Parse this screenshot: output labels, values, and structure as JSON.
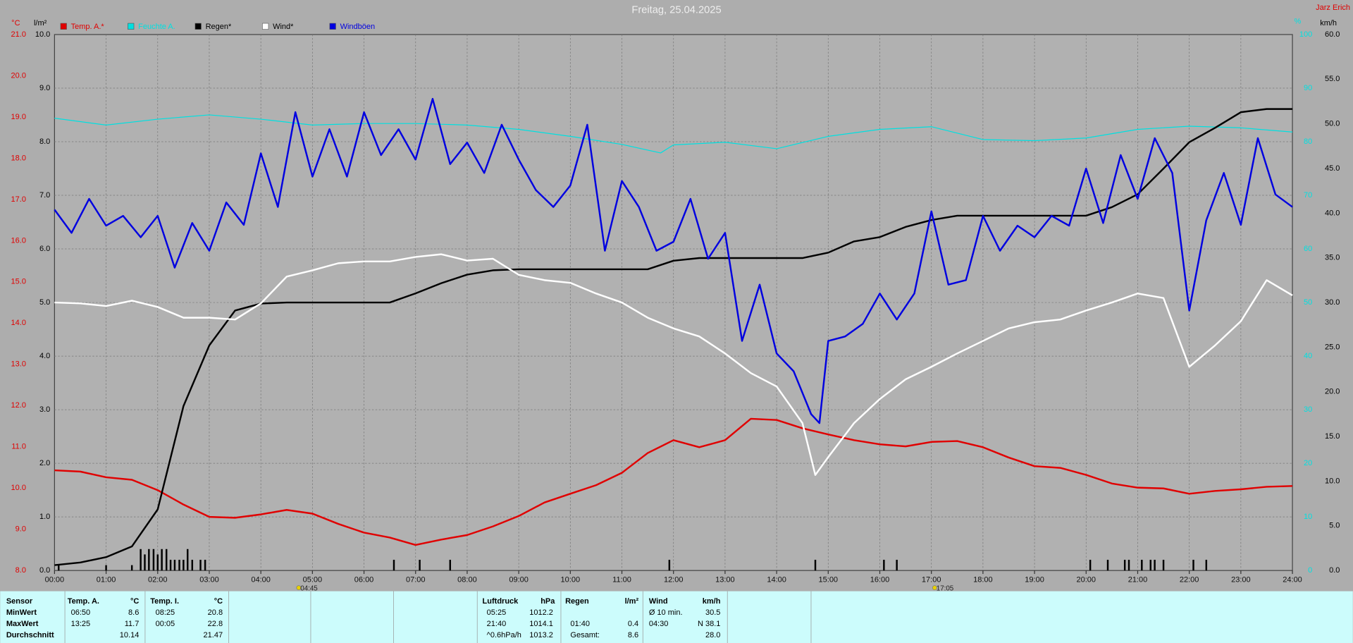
{
  "chart_data": {
    "type": "line",
    "title": "Freitag, 25.04.2025",
    "author": "Jarz Erich",
    "y_unit": "°C",
    "y2_unit": "l/m²",
    "y3_unit": "%",
    "y4_unit": "km/h",
    "xlim": [
      0,
      24
    ],
    "xticks": [
      {
        "value": 0,
        "label": "00:00"
      },
      {
        "value": 1,
        "label": "01:00"
      },
      {
        "value": 2,
        "label": "02:00"
      },
      {
        "value": 3,
        "label": "03:00"
      },
      {
        "value": 4,
        "label": "04:00"
      },
      {
        "value": 5,
        "label": "05:00"
      },
      {
        "value": 6,
        "label": "06:00"
      },
      {
        "value": 7,
        "label": "07:00"
      },
      {
        "value": 8,
        "label": "08:00"
      },
      {
        "value": 9,
        "label": "09:00"
      },
      {
        "value": 10,
        "label": "10:00"
      },
      {
        "value": 11,
        "label": "11:00"
      },
      {
        "value": 12,
        "label": "12:00"
      },
      {
        "value": 13,
        "label": "13:00"
      },
      {
        "value": 14,
        "label": "14:00"
      },
      {
        "value": 15,
        "label": "15:00"
      },
      {
        "value": 16,
        "label": "16:00"
      },
      {
        "value": 17,
        "label": "17:00"
      },
      {
        "value": 18,
        "label": "18:00"
      },
      {
        "value": 19,
        "label": "19:00"
      },
      {
        "value": 20,
        "label": "20:00"
      },
      {
        "value": 21,
        "label": "21:00"
      },
      {
        "value": 22,
        "label": "22:00"
      },
      {
        "value": 23,
        "label": "23:00"
      },
      {
        "value": 24,
        "label": "24:00"
      }
    ],
    "ylim": [
      8,
      21
    ],
    "yticks": [
      {
        "value": 8,
        "label": "8.0"
      },
      {
        "value": 9,
        "label": "9.0"
      },
      {
        "value": 10,
        "label": "10.0"
      },
      {
        "value": 11,
        "label": "11.0"
      },
      {
        "value": 12,
        "label": "12.0"
      },
      {
        "value": 13,
        "label": "13.0"
      },
      {
        "value": 14,
        "label": "14.0"
      },
      {
        "value": 15,
        "label": "15.0"
      },
      {
        "value": 16,
        "label": "16.0"
      },
      {
        "value": 17,
        "label": "17.0"
      },
      {
        "value": 18,
        "label": "18.0"
      },
      {
        "value": 19,
        "label": "19.0"
      },
      {
        "value": 20,
        "label": "20.0"
      },
      {
        "value": 21,
        "label": "21.0"
      }
    ],
    "y2lim": [
      0,
      10
    ],
    "y2ticks": [
      {
        "value": 0,
        "label": "0.0"
      },
      {
        "value": 1,
        "label": "1.0"
      },
      {
        "value": 2,
        "label": "2.0"
      },
      {
        "value": 3,
        "label": "3.0"
      },
      {
        "value": 4,
        "label": "4.0"
      },
      {
        "value": 5,
        "label": "5.0"
      },
      {
        "value": 6,
        "label": "6.0"
      },
      {
        "value": 7,
        "label": "7.0"
      },
      {
        "value": 8,
        "label": "8.0"
      },
      {
        "value": 9,
        "label": "9.0"
      },
      {
        "value": 10,
        "label": "10.0"
      }
    ],
    "y3lim": [
      0,
      100
    ],
    "y3ticks": [
      0,
      10,
      20,
      30,
      40,
      50,
      60,
      70,
      80,
      90,
      100
    ],
    "y4lim": [
      0,
      60
    ],
    "y4ticks": [
      {
        "value": 0,
        "label": "0.0"
      },
      {
        "value": 5,
        "label": "5.0"
      },
      {
        "value": 10,
        "label": "10.0"
      },
      {
        "value": 15,
        "label": "15.0"
      },
      {
        "value": 20,
        "label": "20.0"
      },
      {
        "value": 25,
        "label": "25.0"
      },
      {
        "value": 30,
        "label": "30.0"
      },
      {
        "value": 35,
        "label": "35.0"
      },
      {
        "value": 40,
        "label": "40.0"
      },
      {
        "value": 45,
        "label": "45.0"
      },
      {
        "value": 50,
        "label": "50.0"
      },
      {
        "value": 55,
        "label": "55.0"
      },
      {
        "value": 60,
        "label": "60.0"
      }
    ],
    "grid": true,
    "series": [
      {
        "name": "Temp. A.*",
        "color": "#e00000",
        "axis": "y",
        "type": "line",
        "x": [
          0,
          0.5,
          1,
          1.5,
          2,
          2.5,
          3,
          3.5,
          4,
          4.5,
          5,
          5.5,
          6,
          6.5,
          7,
          7.5,
          8,
          8.5,
          9,
          9.5,
          10,
          10.5,
          11,
          11.5,
          12,
          12.5,
          13,
          13.5,
          14,
          14.5,
          15,
          15.5,
          16,
          16.5,
          17,
          17.5,
          18,
          18.5,
          19,
          19.5,
          20,
          20.5,
          21,
          21.5,
          22,
          22.5,
          23,
          23.5,
          24
        ],
        "values": [
          10.43,
          10.4,
          10.26,
          10.2,
          9.95,
          9.6,
          9.3,
          9.28,
          9.36,
          9.47,
          9.38,
          9.13,
          8.92,
          8.8,
          8.62,
          8.75,
          8.86,
          9.07,
          9.32,
          9.65,
          9.86,
          10.07,
          10.37,
          10.85,
          11.16,
          10.99,
          11.16,
          11.68,
          11.65,
          11.45,
          11.3,
          11.16,
          11.06,
          11.01,
          11.12,
          11.14,
          10.99,
          10.74,
          10.53,
          10.49,
          10.32,
          10.11,
          10.01,
          9.99,
          9.86,
          9.93,
          9.97,
          10.03,
          10.05
        ]
      },
      {
        "name": "Feuchte A.",
        "color": "#00e0e0",
        "axis": "y3",
        "type": "line",
        "x": [
          0,
          1,
          2,
          3,
          4,
          5,
          6,
          7,
          8,
          9,
          10,
          11,
          11.75,
          12,
          13,
          14,
          15,
          16,
          17,
          18,
          19,
          20,
          21,
          22,
          23,
          24
        ],
        "values": [
          84.4,
          83.1,
          84.2,
          85.0,
          84.2,
          83.1,
          83.4,
          83.4,
          83.1,
          82.3,
          81.0,
          79.5,
          77.9,
          79.4,
          79.9,
          78.7,
          81.0,
          82.3,
          82.8,
          80.4,
          80.2,
          80.7,
          82.3,
          82.9,
          82.6,
          81.8
        ]
      },
      {
        "name": "Regen*",
        "color": "#000000",
        "axis": "y2",
        "type": "line",
        "x": [
          0,
          0.5,
          1,
          1.5,
          2,
          2.5,
          3,
          3.5,
          4,
          4.5,
          5,
          5.5,
          6,
          6.5,
          7,
          7.5,
          8,
          8.5,
          9,
          9.5,
          10,
          10.5,
          11,
          11.5,
          12,
          12.5,
          13,
          13.5,
          14,
          14.5,
          15,
          15.5,
          16,
          16.5,
          17,
          17.5,
          18,
          18.5,
          19,
          19.5,
          20,
          20.5,
          21,
          21.5,
          22,
          22.5,
          23,
          23.5,
          24
        ],
        "values": [
          0.1,
          0.15,
          0.25,
          0.45,
          1.14,
          3.07,
          4.2,
          4.85,
          4.98,
          5.0,
          5.0,
          5.0,
          5.0,
          5.0,
          5.17,
          5.36,
          5.52,
          5.6,
          5.62,
          5.62,
          5.62,
          5.62,
          5.62,
          5.62,
          5.78,
          5.83,
          5.83,
          5.83,
          5.83,
          5.83,
          5.93,
          6.14,
          6.22,
          6.41,
          6.54,
          6.62,
          6.62,
          6.62,
          6.62,
          6.62,
          6.62,
          6.78,
          7.02,
          7.5,
          7.99,
          8.26,
          8.55,
          8.61,
          8.61
        ]
      },
      {
        "color": "#000000",
        "axis": "y2",
        "type": "bar",
        "x": [
          0.08,
          1,
          1.5,
          1.67,
          1.75,
          1.83,
          1.92,
          2,
          2.08,
          2.17,
          2.25,
          2.33,
          2.42,
          2.5,
          2.58,
          2.67,
          2.83,
          2.92,
          6.58,
          7.08,
          7.67,
          11.92,
          14.75,
          16.08,
          16.33,
          20.08,
          20.42,
          20.75,
          20.83,
          21.08,
          21.25,
          21.33,
          21.5,
          22.08,
          22.33
        ],
        "values": [
          0.1,
          0.1,
          0.1,
          0.4,
          0.3,
          0.4,
          0.4,
          0.3,
          0.4,
          0.4,
          0.2,
          0.2,
          0.2,
          0.2,
          0.4,
          0.2,
          0.2,
          0.2,
          0.2,
          0.2,
          0.2,
          0.2,
          0.2,
          0.2,
          0.2,
          0.2,
          0.2,
          0.2,
          0.2,
          0.2,
          0.2,
          0.2,
          0.2,
          0.2,
          0.2
        ]
      },
      {
        "name": "Wind*",
        "color": "#ffffff",
        "axis": "y4",
        "type": "line",
        "x": [
          0,
          0.5,
          1,
          1.5,
          2,
          2.5,
          3,
          3.5,
          4,
          4.5,
          5,
          5.5,
          6,
          6.5,
          7,
          7.5,
          8,
          8.5,
          9,
          9.5,
          10,
          10.5,
          11,
          11.5,
          12,
          12.5,
          13,
          13.5,
          14,
          14.5,
          14.75,
          15,
          15.5,
          16,
          16.5,
          17,
          17.5,
          18,
          18.5,
          19,
          19.5,
          20,
          20.5,
          21,
          21.5,
          22,
          22.5,
          23,
          23.5,
          24
        ],
        "values": [
          30.0,
          29.9,
          29.6,
          30.2,
          29.5,
          28.3,
          28.3,
          28.1,
          29.9,
          32.9,
          33.6,
          34.4,
          34.6,
          34.6,
          35.1,
          35.4,
          34.7,
          34.9,
          33.1,
          32.5,
          32.2,
          31.0,
          30.0,
          28.3,
          27.1,
          26.2,
          24.3,
          22.1,
          20.6,
          16.5,
          10.7,
          12.7,
          16.5,
          19.2,
          21.4,
          22.8,
          24.3,
          25.7,
          27.1,
          27.8,
          28.1,
          29.1,
          30.0,
          31.0,
          30.5,
          22.8,
          25.2,
          27.9,
          32.5,
          30.8
        ]
      },
      {
        "name": "Windböen",
        "color": "#0000e0",
        "axis": "y4",
        "type": "line",
        "x": [
          0,
          0.33,
          0.67,
          1,
          1.33,
          1.67,
          2,
          2.33,
          2.67,
          3,
          3.33,
          3.67,
          4,
          4.33,
          4.67,
          5,
          5.33,
          5.67,
          6,
          6.33,
          6.67,
          7,
          7.33,
          7.67,
          8,
          8.33,
          8.67,
          9,
          9.33,
          9.67,
          10,
          10.33,
          10.67,
          11,
          11.33,
          11.67,
          12,
          12.33,
          12.67,
          13,
          13.33,
          13.67,
          14,
          14.33,
          14.67,
          14.83,
          15,
          15.33,
          15.67,
          16,
          16.33,
          16.67,
          17,
          17.33,
          17.67,
          18,
          18.33,
          18.67,
          19,
          19.33,
          19.67,
          20,
          20.33,
          20.67,
          21,
          21.33,
          21.67,
          22,
          22.33,
          22.67,
          23,
          23.33,
          23.67,
          24
        ],
        "values": [
          40.4,
          37.8,
          41.6,
          38.6,
          39.7,
          37.3,
          39.7,
          33.9,
          38.9,
          35.8,
          41.2,
          38.7,
          46.7,
          40.7,
          51.3,
          44.1,
          49.4,
          44.1,
          51.3,
          46.5,
          49.4,
          46.0,
          52.8,
          45.5,
          47.9,
          44.5,
          49.9,
          46.0,
          42.6,
          40.7,
          43.1,
          49.9,
          35.8,
          43.6,
          40.7,
          35.8,
          36.8,
          41.6,
          34.9,
          37.8,
          25.7,
          32.0,
          24.3,
          22.3,
          17.5,
          16.5,
          25.7,
          26.2,
          27.6,
          31.0,
          28.1,
          31.0,
          40.2,
          32.0,
          32.5,
          39.7,
          35.8,
          38.6,
          37.3,
          39.7,
          38.6,
          45.0,
          38.9,
          46.5,
          41.6,
          48.4,
          44.5,
          29.1,
          39.2,
          44.5,
          38.7,
          48.4,
          42.1,
          40.7
        ]
      }
    ],
    "annotations": [
      {
        "x": 4.75,
        "label": "04:45"
      },
      {
        "x": 17.08,
        "label": "17:05"
      }
    ]
  },
  "table": {
    "row_labels": [
      "Sensor",
      "MinWert",
      "MaxWert",
      "Durchschnitt"
    ],
    "groups": [
      {
        "header": [
          "Temp. A.",
          "°C"
        ],
        "rows": [
          [
            "06:50",
            "8.6"
          ],
          [
            "13:25",
            "11.7"
          ],
          [
            null,
            "10.14"
          ]
        ]
      },
      {
        "header": [
          "Temp. I.",
          "°C"
        ],
        "rows": [
          [
            "08:25",
            "20.8"
          ],
          [
            "00:05",
            "22.8"
          ],
          [
            null,
            "21.47"
          ]
        ]
      },
      {
        "header": [
          "Luftdruck",
          "hPa"
        ],
        "rows": [
          [
            "05:25",
            "1012.2"
          ],
          [
            "21:40",
            "1014.1"
          ],
          [
            "^0.6hPa/h",
            "1013.2"
          ]
        ]
      },
      {
        "header": [
          "Regen",
          "l/m²"
        ],
        "rows": [
          [
            null,
            null
          ],
          [
            "01:40",
            "0.4"
          ],
          [
            "Gesamt:",
            "8.6"
          ]
        ]
      },
      {
        "header": [
          "Wind",
          "km/h"
        ],
        "rows": [
          [
            "Ø 10 min.",
            "30.5"
          ],
          [
            "04:30",
            "N 38.1"
          ],
          [
            null,
            "28.0"
          ]
        ]
      }
    ]
  }
}
